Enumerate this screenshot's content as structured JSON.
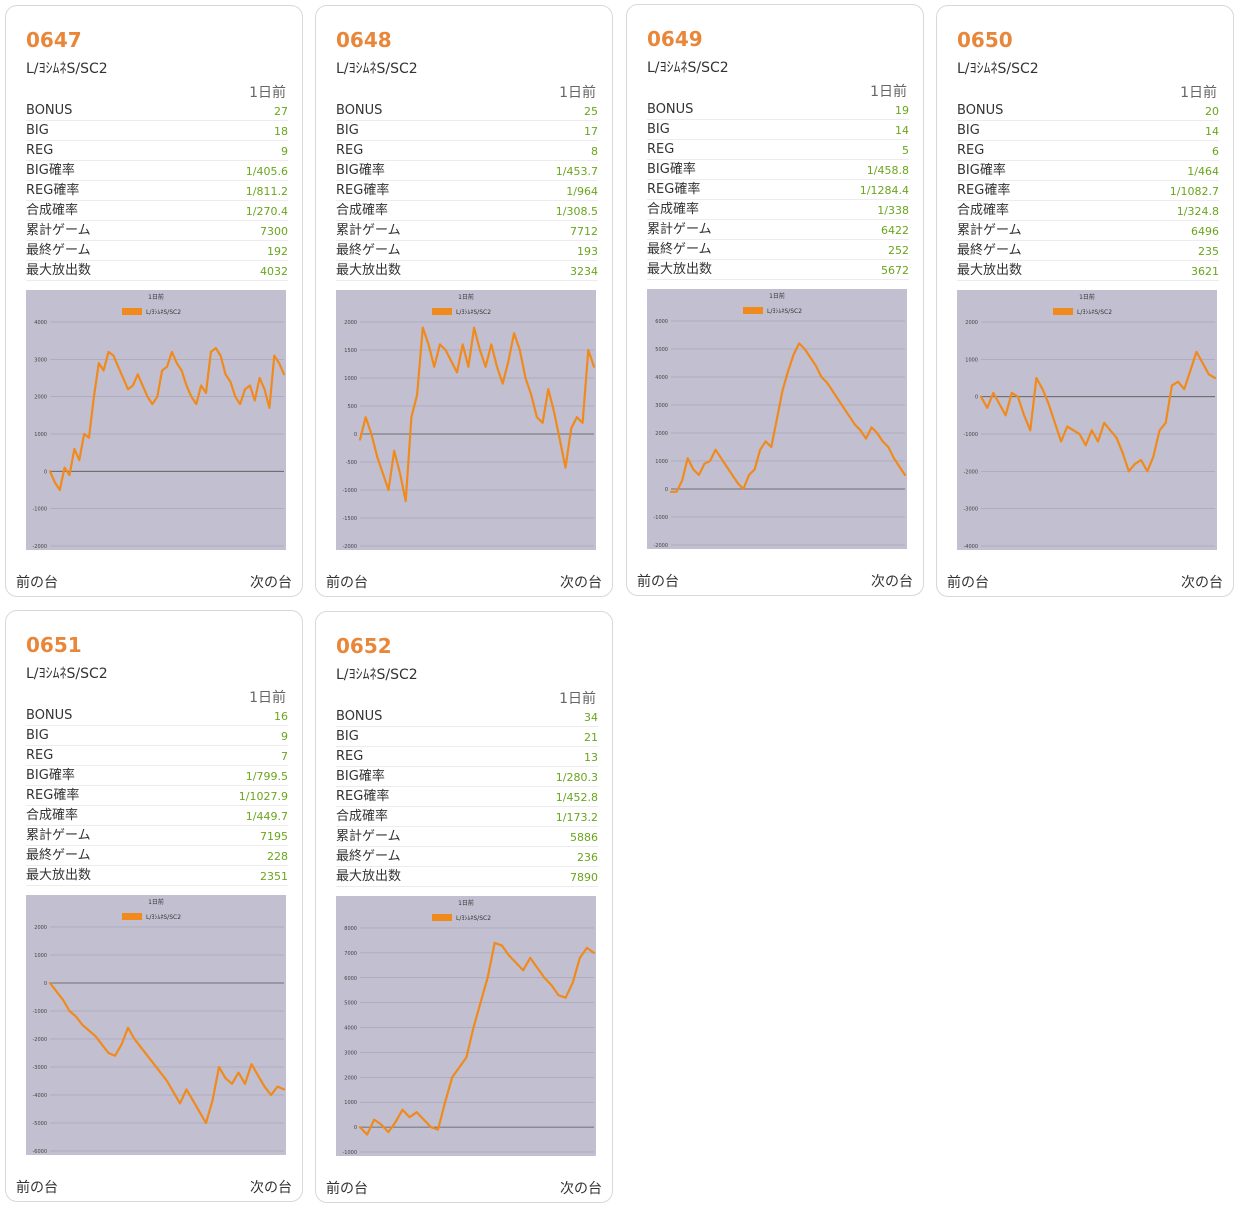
{
  "colors": {
    "accent": "#e8873a",
    "value": "#6aa51c",
    "chart_bg": "#c2c0d0",
    "line": "#f08a1c"
  },
  "stat_labels": [
    "BONUS",
    "BIG",
    "REG",
    "BIG確率",
    "REG確率",
    "合成確率",
    "累計ゲーム",
    "最終ゲーム",
    "最大放出数"
  ],
  "day_label": "1日前",
  "nav": {
    "prev": "前の台",
    "next": "次の台"
  },
  "machines": [
    {
      "number": "0647",
      "model": "L/ﾖｼﾑﾈS/SC2",
      "stats": [
        "27",
        "18",
        "9",
        "1/405.6",
        "1/811.2",
        "1/270.4",
        "7300",
        "192",
        "4032"
      ],
      "chart_data": {
        "type": "line",
        "title": "1日前",
        "legend": "L/ﾖｼﾑﾈS/SC2",
        "ylim": [
          -2000,
          4000
        ],
        "yticks": [
          "4000",
          "3000",
          "2000",
          "1000",
          "0",
          "-1000",
          "-2000"
        ],
        "values": [
          0,
          -300,
          -500,
          100,
          -100,
          600,
          300,
          1000,
          900,
          2000,
          2900,
          2700,
          3200,
          3100,
          2800,
          2500,
          2200,
          2300,
          2600,
          2300,
          2000,
          1800,
          2000,
          2700,
          2800,
          3200,
          2900,
          2700,
          2300,
          2000,
          1800,
          2300,
          2100,
          3200,
          3300,
          3100,
          2600,
          2400,
          2000,
          1800,
          2200,
          2300,
          1900,
          2500,
          2200,
          1700,
          3100,
          2900,
          2600
        ]
      }
    },
    {
      "number": "0648",
      "model": "L/ﾖｼﾑﾈS/SC2",
      "stats": [
        "25",
        "17",
        "8",
        "1/453.7",
        "1/964",
        "1/308.5",
        "7712",
        "193",
        "3234"
      ],
      "chart_data": {
        "type": "line",
        "title": "1日前",
        "legend": "L/ﾖｼﾑﾈS/SC2",
        "ylim": [
          -2000,
          2000
        ],
        "yticks": [
          "2000",
          "1500",
          "1000",
          "500",
          "0",
          "-500",
          "-1000",
          "-1500",
          "-2000"
        ],
        "values": [
          -100,
          300,
          0,
          -400,
          -700,
          -1000,
          -300,
          -700,
          -1200,
          300,
          700,
          1900,
          1600,
          1200,
          1600,
          1500,
          1300,
          1100,
          1600,
          1200,
          1900,
          1500,
          1200,
          1600,
          1200,
          900,
          1300,
          1800,
          1500,
          1000,
          700,
          300,
          200,
          800,
          400,
          -100,
          -600,
          100,
          300,
          200,
          1500,
          1200
        ]
      }
    },
    {
      "number": "0649",
      "model": "L/ﾖｼﾑﾈS/SC2",
      "stats": [
        "19",
        "14",
        "5",
        "1/458.8",
        "1/1284.4",
        "1/338",
        "6422",
        "252",
        "5672"
      ],
      "chart_data": {
        "type": "line",
        "title": "1日前",
        "legend": "L/ﾖｼﾑﾈS/SC2",
        "ylim": [
          -2000,
          6000
        ],
        "yticks": [
          "6000",
          "5000",
          "4000",
          "3000",
          "2000",
          "1000",
          "0",
          "-1000",
          "-2000"
        ],
        "values": [
          -100,
          -100,
          300,
          1100,
          700,
          500,
          900,
          1000,
          1400,
          1100,
          800,
          500,
          200,
          0,
          500,
          700,
          1400,
          1700,
          1500,
          2500,
          3500,
          4200,
          4800,
          5200,
          5000,
          4700,
          4400,
          4000,
          3800,
          3500,
          3200,
          2900,
          2600,
          2300,
          2100,
          1800,
          2200,
          2000,
          1700,
          1500,
          1100,
          800,
          500
        ]
      }
    },
    {
      "number": "0650",
      "model": "L/ﾖｼﾑﾈS/SC2",
      "stats": [
        "20",
        "14",
        "6",
        "1/464",
        "1/1082.7",
        "1/324.8",
        "6496",
        "235",
        "3621"
      ],
      "chart_data": {
        "type": "line",
        "title": "1日前",
        "legend": "L/ﾖｼﾑﾈS/SC2",
        "ylim": [
          -4000,
          2000
        ],
        "yticks": [
          "2000",
          "1000",
          "0",
          "-1000",
          "-2000",
          "-3000",
          "-4000"
        ],
        "values": [
          0,
          -300,
          100,
          -200,
          -500,
          100,
          0,
          -500,
          -900,
          500,
          200,
          -200,
          -700,
          -1200,
          -800,
          -900,
          -1000,
          -1300,
          -900,
          -1200,
          -700,
          -900,
          -1100,
          -1500,
          -2000,
          -1800,
          -1700,
          -2000,
          -1600,
          -900,
          -700,
          300,
          400,
          200,
          700,
          1200,
          900,
          600,
          500
        ]
      }
    },
    {
      "number": "0651",
      "model": "L/ﾖｼﾑﾈS/SC2",
      "stats": [
        "16",
        "9",
        "7",
        "1/799.5",
        "1/1027.9",
        "1/449.7",
        "7195",
        "228",
        "2351"
      ],
      "chart_data": {
        "type": "line",
        "title": "1日前",
        "legend": "L/ﾖｼﾑﾈS/SC2",
        "ylim": [
          -6000,
          2000
        ],
        "yticks": [
          "2000",
          "1000",
          "0",
          "-1000",
          "-2000",
          "-3000",
          "-4000",
          "-5000",
          "-6000"
        ],
        "values": [
          0,
          -300,
          -600,
          -1000,
          -1200,
          -1500,
          -1700,
          -1900,
          -2200,
          -2500,
          -2600,
          -2200,
          -1600,
          -2000,
          -2300,
          -2600,
          -2900,
          -3200,
          -3500,
          -3900,
          -4300,
          -3800,
          -4200,
          -4600,
          -5000,
          -4200,
          -3000,
          -3400,
          -3600,
          -3200,
          -3600,
          -2900,
          -3300,
          -3700,
          -4000,
          -3700,
          -3800
        ]
      }
    },
    {
      "number": "0652",
      "model": "L/ﾖｼﾑﾈS/SC2",
      "stats": [
        "34",
        "21",
        "13",
        "1/280.3",
        "1/452.8",
        "1/173.2",
        "5886",
        "236",
        "7890"
      ],
      "chart_data": {
        "type": "line",
        "title": "1日前",
        "legend": "L/ﾖｼﾑﾈS/SC2",
        "ylim": [
          -1000,
          8000
        ],
        "yticks": [
          "8000",
          "7000",
          "6000",
          "5000",
          "4000",
          "3000",
          "2000",
          "1000",
          "0",
          "-1000"
        ],
        "values": [
          0,
          -300,
          300,
          100,
          -200,
          200,
          700,
          400,
          600,
          300,
          0,
          -100,
          1000,
          2000,
          2400,
          2800,
          4000,
          5000,
          6000,
          7400,
          7300,
          6900,
          6600,
          6300,
          6800,
          6400,
          6000,
          5700,
          5300,
          5200,
          5800,
          6800,
          7200,
          7000
        ]
      }
    }
  ]
}
